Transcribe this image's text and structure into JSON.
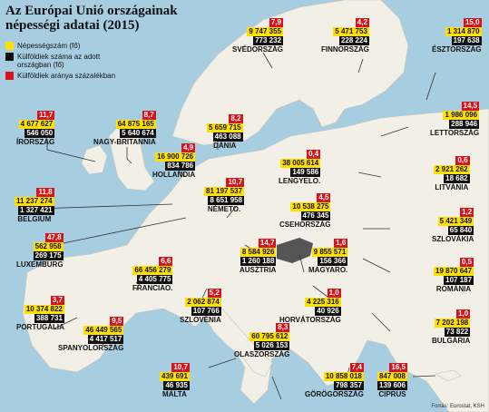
{
  "title": {
    "line1": "Az Európai Unió országainak",
    "line2": "népességi adatai (2015)"
  },
  "legend": [
    {
      "label": "Népességszám (fő)",
      "color": "#ffe000"
    },
    {
      "label": "Külföldiek száma az adott országban (fő)",
      "color": "#111111"
    },
    {
      "label": "Külföldiek aránya százalékban",
      "color": "#d8141b"
    }
  ],
  "source": "Forrás: Eurostat, KSH",
  "countries": [
    {
      "id": "svedorszag",
      "name": "SVÉDORSZÁG",
      "population": "9 747 355",
      "foreigners": "773 232",
      "percent": "7,9"
    },
    {
      "id": "finnorszag",
      "name": "FINNORSZÁG",
      "population": "5 471 753",
      "foreigners": "228 224",
      "percent": "4,2"
    },
    {
      "id": "esztorszag",
      "name": "ÉSZTORSZÁG",
      "population": "1 314 870",
      "foreigners": "197 638",
      "percent": "15,0"
    },
    {
      "id": "irorszag",
      "name": "ÍRORSZÁG",
      "population": "4 677 627",
      "foreigners": "546 050",
      "percent": "11,7"
    },
    {
      "id": "nagy-britannia",
      "name": "NAGY-BRITANNIA",
      "population": "64 875 165",
      "foreigners": "5 640 674",
      "percent": "8,7"
    },
    {
      "id": "dania",
      "name": "DÁNIA",
      "population": "5 659 715",
      "foreigners": "463 088",
      "percent": "8,2"
    },
    {
      "id": "lettorszag",
      "name": "LETTORSZÁG",
      "population": "1 986 096",
      "foreigners": "288 946",
      "percent": "14,5"
    },
    {
      "id": "hollandia",
      "name": "HOLLANDIA",
      "population": "16 900 726",
      "foreigners": "834 786",
      "percent": "4,9"
    },
    {
      "id": "lengyelo",
      "name": "LENGYELO.",
      "population": "38 005 614",
      "foreigners": "149 586",
      "percent": "0,4"
    },
    {
      "id": "litvania",
      "name": "LITVÁNIA",
      "population": "2 921 262",
      "foreigners": "18 682",
      "percent": "0,6"
    },
    {
      "id": "belgium",
      "name": "BELGIUM",
      "population": "11 237 274",
      "foreigners": "1 327 421",
      "percent": "11,8"
    },
    {
      "id": "nemeto",
      "name": "NÉMETO.",
      "population": "81 197 537",
      "foreigners": "8 651 958",
      "percent": "10,7"
    },
    {
      "id": "csehorszag",
      "name": "CSEHORSZÁG",
      "population": "10 538 275",
      "foreigners": "476 345",
      "percent": "4,5"
    },
    {
      "id": "szlovakia",
      "name": "SZLOVÁKIA",
      "population": "5 421 349",
      "foreigners": "65 840",
      "percent": "1,2"
    },
    {
      "id": "luxemburg",
      "name": "LUXEMBURG",
      "population": "562 958",
      "foreigners": "269 175",
      "percent": "47,8"
    },
    {
      "id": "franciao",
      "name": "FRANCIAO.",
      "population": "66 456 279",
      "foreigners": "4 405 775",
      "percent": "6,6"
    },
    {
      "id": "ausztria",
      "name": "AUSZTRIA",
      "population": "8 584 926",
      "foreigners": "1 260 188",
      "percent": "14,7"
    },
    {
      "id": "magyaro",
      "name": "MAGYARO.",
      "population": "9 855 571",
      "foreigners": "156 366",
      "percent": "1,6"
    },
    {
      "id": "romania",
      "name": "ROMÁNIA",
      "population": "19 870 647",
      "foreigners": "107 187",
      "percent": "0,5"
    },
    {
      "id": "portugalia",
      "name": "PORTUGÁLIA",
      "population": "10 374 822",
      "foreigners": "388 731",
      "percent": "3,7"
    },
    {
      "id": "szlovenia",
      "name": "SZLOVÉNIA",
      "population": "2 062 874",
      "foreigners": "107 766",
      "percent": "5,2"
    },
    {
      "id": "horvatorszag",
      "name": "HORVÁTORSZÁG",
      "population": "4 225 316",
      "foreigners": "40 926",
      "percent": "1,0"
    },
    {
      "id": "bulgaria",
      "name": "BULGÁRIA",
      "population": "7 202 198",
      "foreigners": "73 822",
      "percent": "1,0"
    },
    {
      "id": "spanyolorszag",
      "name": "SPANYOLORSZÁG",
      "population": "46 449 565",
      "foreigners": "4 417 517",
      "percent": "9,5"
    },
    {
      "id": "olaszorszag",
      "name": "OLASZORSZÁG",
      "population": "60 795 612",
      "foreigners": "5 026 153",
      "percent": "8,3"
    },
    {
      "id": "malta",
      "name": "MÁLTA",
      "population": "439 691",
      "foreigners": "46 935",
      "percent": "10,7"
    },
    {
      "id": "gorogorszag",
      "name": "GÖRÖGORSZÁG",
      "population": "10 858 018",
      "foreigners": "798 357",
      "percent": "7,4"
    },
    {
      "id": "ciprus",
      "name": "CIPRUS",
      "population": "847 008",
      "foreigners": "139 606",
      "percent": "16,5"
    }
  ]
}
